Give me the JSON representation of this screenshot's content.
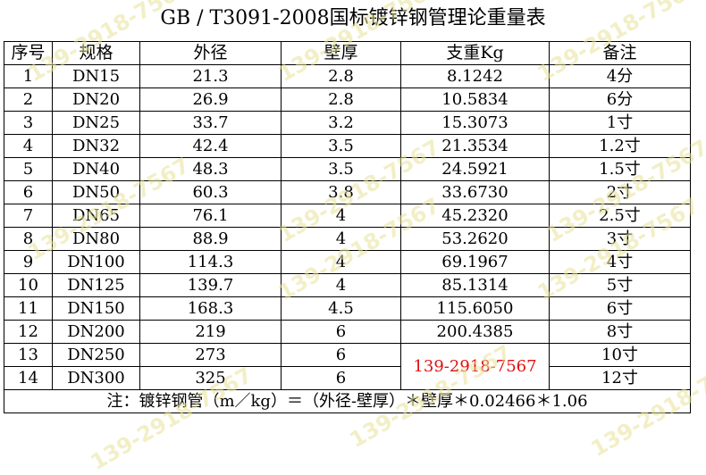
{
  "title": "GB / T3091-2008国标镀锌钢管理论重量表",
  "headers": [
    "序号",
    "规格",
    "外径",
    "壁厚",
    "支重Kg",
    "备注"
  ],
  "rows": [
    {
      "no": "1",
      "spec": "DN15",
      "od": "21.3",
      "wall": "2.8",
      "weight": "8.1242",
      "note": "4分"
    },
    {
      "no": "2",
      "spec": "DN20",
      "od": "26.9",
      "wall": "2.8",
      "weight": "10.5834",
      "note": "6分"
    },
    {
      "no": "3",
      "spec": "DN25",
      "od": "33.7",
      "wall": "3.2",
      "weight": "15.3073",
      "note": "1寸"
    },
    {
      "no": "4",
      "spec": "DN32",
      "od": "42.4",
      "wall": "3.5",
      "weight": "21.3534",
      "note": "1.2寸"
    },
    {
      "no": "5",
      "spec": "DN40",
      "od": "48.3",
      "wall": "3.5",
      "weight": "24.5921",
      "note": "1.5寸"
    },
    {
      "no": "6",
      "spec": "DN50",
      "od": "60.3",
      "wall": "3.8",
      "weight": "33.6730",
      "note": "2寸"
    },
    {
      "no": "7",
      "spec": "DN65",
      "od": "76.1",
      "wall": "4",
      "weight": "45.2320",
      "note": "2.5寸"
    },
    {
      "no": "8",
      "spec": "DN80",
      "od": "88.9",
      "wall": "4",
      "weight": "53.2620",
      "note": "3寸"
    },
    {
      "no": "9",
      "spec": "DN100",
      "od": "114.3",
      "wall": "4",
      "weight": "69.1967",
      "note": "4寸"
    },
    {
      "no": "10",
      "spec": "DN125",
      "od": "139.7",
      "wall": "4",
      "weight": "85.1314",
      "note": "5寸"
    },
    {
      "no": "11",
      "spec": "DN150",
      "od": "168.3",
      "wall": "4.5",
      "weight": "115.6050",
      "note": "6寸"
    },
    {
      "no": "12",
      "spec": "DN200",
      "od": "219",
      "wall": "6",
      "weight": "200.4385",
      "note": "8寸"
    },
    {
      "no": "13",
      "spec": "DN250",
      "od": "273",
      "wall": "6",
      "weight": "",
      "note": "10寸"
    },
    {
      "no": "14",
      "spec": "DN300",
      "od": "325",
      "wall": "6",
      "weight": "",
      "note": "12寸"
    }
  ],
  "phone": "139-2918-7567",
  "formula": "注：镀锌钢管（m／kg）＝（外径-壁厚）＊壁厚＊0.02466＊1.06",
  "watermark_text": "139-2918-7567",
  "colors": {
    "phone": "#e01010",
    "watermark": "#e8e39a",
    "cell_marker": "#2b8a2b"
  }
}
